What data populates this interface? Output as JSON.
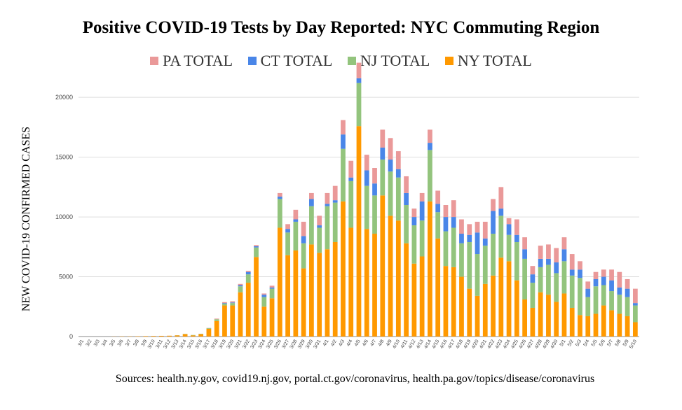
{
  "title": "Positive COVID-19 Tests by Day Reported: NYC Commuting Region",
  "ylabel": "NEW COVID-19 CONFIRMED CASES",
  "sources": "Sources: health.ny.gov, covid19.nj.gov, portal.ct.gov/coronavirus, health.pa.gov/topics/disease/coronavirus",
  "legend": [
    {
      "label": "PA TOTAL",
      "color": "#ea9999"
    },
    {
      "label": "CT TOTAL",
      "color": "#4a86e8"
    },
    {
      "label": "NJ TOTAL",
      "color": "#93c47d"
    },
    {
      "label": "NY TOTAL",
      "color": "#ff9900"
    }
  ],
  "chart_data": {
    "type": "bar",
    "stacked": true,
    "ylim": [
      0,
      22000
    ],
    "yticks": [
      "0",
      "5000",
      "10000",
      "15000",
      "20000"
    ],
    "categories": [
      "3/1",
      "3/2",
      "3/3",
      "3/4",
      "3/5",
      "3/6",
      "3/7",
      "3/8",
      "3/9",
      "3/10",
      "3/11",
      "3/12",
      "3/13",
      "3/14",
      "3/15",
      "3/16",
      "3/17",
      "3/18",
      "3/19",
      "3/20",
      "3/21",
      "3/22",
      "3/23",
      "3/24",
      "3/25",
      "3/26",
      "3/27",
      "3/28",
      "3/29",
      "3/30",
      "3/31",
      "4/1",
      "4/2",
      "4/3",
      "4/4",
      "4/5",
      "4/6",
      "4/7",
      "4/8",
      "4/9",
      "4/10",
      "4/11",
      "4/12",
      "4/13",
      "4/14",
      "4/15",
      "4/16",
      "4/17",
      "4/18",
      "4/19",
      "4/20",
      "4/21",
      "4/22",
      "4/23",
      "4/24",
      "4/25",
      "4/26",
      "4/27",
      "4/28",
      "4/29",
      "4/30",
      "5/1",
      "5/2",
      "5/3",
      "5/4",
      "5/5",
      "5/6",
      "5/7",
      "5/8",
      "5/9",
      "5/10"
    ],
    "series": [
      {
        "name": "NY TOTAL",
        "color": "#ff9900",
        "values": [
          0,
          0,
          0,
          0,
          10,
          20,
          20,
          30,
          40,
          50,
          60,
          70,
          100,
          200,
          100,
          200,
          650,
          1300,
          2600,
          2600,
          3700,
          4500,
          6650,
          2500,
          3200,
          9100,
          6800,
          7200,
          5700,
          7700,
          7000,
          7300,
          7900,
          11300,
          9100,
          17600,
          9000,
          8600,
          11800,
          10100,
          9700,
          7800,
          6100,
          6700,
          11300,
          8200,
          5900,
          5800,
          5000,
          4000,
          3400,
          4400,
          5100,
          6600,
          6300,
          4700,
          3100,
          2400,
          3700,
          3500,
          2900,
          3600,
          2400,
          1800,
          1700,
          1900,
          2600,
          2200,
          1900,
          1700,
          1200
        ]
      },
      {
        "name": "NJ TOTAL",
        "color": "#93c47d",
        "values": [
          0,
          0,
          0,
          0,
          0,
          0,
          0,
          0,
          0,
          0,
          0,
          0,
          10,
          20,
          30,
          30,
          50,
          150,
          150,
          200,
          500,
          700,
          800,
          800,
          800,
          2400,
          1900,
          2400,
          2100,
          3200,
          2100,
          3600,
          3300,
          4400,
          3900,
          3600,
          3600,
          3200,
          3000,
          3700,
          3600,
          3200,
          3200,
          3000,
          4300,
          2200,
          2900,
          3300,
          2800,
          3900,
          3500,
          3200,
          3500,
          3500,
          2200,
          3200,
          3400,
          2100,
          2100,
          2500,
          2400,
          2700,
          2700,
          3100,
          1600,
          2300,
          1700,
          1600,
          1600,
          1600,
          1400
        ]
      },
      {
        "name": "CT TOTAL",
        "color": "#4a86e8",
        "values": [
          0,
          0,
          0,
          0,
          0,
          0,
          0,
          0,
          0,
          0,
          0,
          0,
          0,
          0,
          0,
          0,
          0,
          0,
          50,
          50,
          100,
          200,
          100,
          200,
          100,
          200,
          300,
          200,
          600,
          600,
          200,
          200,
          200,
          1200,
          300,
          400,
          1300,
          1000,
          1000,
          1000,
          700,
          1000,
          700,
          1600,
          600,
          700,
          1200,
          900,
          800,
          600,
          1800,
          600,
          1900,
          600,
          900,
          600,
          800,
          700,
          700,
          500,
          900,
          1000,
          500,
          700,
          700,
          600,
          700,
          900,
          600,
          700,
          200
        ]
      },
      {
        "name": "PA TOTAL",
        "color": "#ea9999",
        "values": [
          0,
          0,
          0,
          0,
          0,
          0,
          0,
          0,
          0,
          0,
          0,
          0,
          0,
          0,
          0,
          0,
          20,
          50,
          80,
          100,
          100,
          100,
          100,
          100,
          150,
          300,
          400,
          800,
          1200,
          500,
          800,
          900,
          1200,
          1200,
          1400,
          1300,
          1300,
          1300,
          1500,
          1800,
          1500,
          1400,
          700,
          700,
          1100,
          1100,
          1000,
          1400,
          1200,
          900,
          900,
          1400,
          1000,
          1800,
          500,
          1300,
          1000,
          700,
          1100,
          1200,
          1200,
          1000,
          1300,
          700,
          600,
          600,
          600,
          900,
          1300,
          800,
          1200
        ]
      }
    ]
  }
}
